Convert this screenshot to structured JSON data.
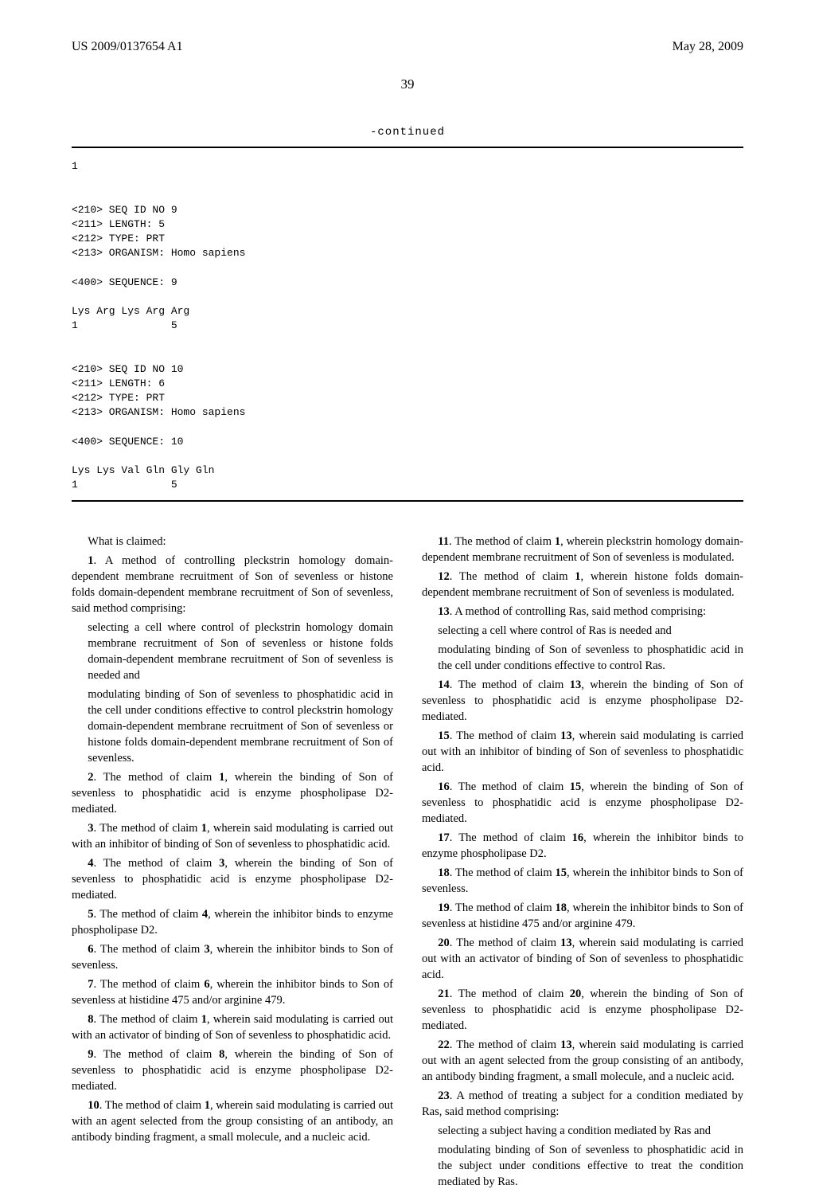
{
  "header": {
    "pubno": "US 2009/0137654 A1",
    "date": "May 28, 2009"
  },
  "page_number": "39",
  "continued_label": "-continued",
  "sequence_text": "1\n\n\n<210> SEQ ID NO 9\n<211> LENGTH: 5\n<212> TYPE: PRT\n<213> ORGANISM: Homo sapiens\n\n<400> SEQUENCE: 9\n\nLys Arg Lys Arg Arg\n1               5\n\n\n<210> SEQ ID NO 10\n<211> LENGTH: 6\n<212> TYPE: PRT\n<213> ORGANISM: Homo sapiens\n\n<400> SEQUENCE: 10\n\nLys Lys Val Gln Gly Gln\n1               5",
  "claims_lead": "What is claimed:",
  "claims": {
    "c1": {
      "num": "1",
      "intro": ". A method of controlling pleckstrin homology domain-dependent membrane recruitment of Son of sevenless or histone folds domain-dependent membrane recruitment of Son of sevenless, said method comprising:",
      "sub1": "selecting a cell where control of pleckstrin homology domain membrane recruitment of Son of sevenless or histone folds domain-dependent membrane recruitment of Son of sevenless is needed and",
      "sub2": "modulating binding of Son of sevenless to phosphatidic acid in the cell under conditions effective to control pleckstrin homology domain-dependent membrane recruitment of Son of sevenless or histone folds domain-dependent membrane recruitment of Son of sevenless."
    },
    "c2": {
      "num": "2",
      "ref": "1",
      "text_a": ". The method of claim ",
      "text_b": ", wherein the binding of Son of sevenless to phosphatidic acid is enzyme phospholipase D2-mediated."
    },
    "c3": {
      "num": "3",
      "ref": "1",
      "text_a": ". The method of claim ",
      "text_b": ", wherein said modulating is carried out with an inhibitor of binding of Son of sevenless to phosphatidic acid."
    },
    "c4": {
      "num": "4",
      "ref": "3",
      "text_a": ". The method of claim ",
      "text_b": ", wherein the binding of Son of sevenless to phosphatidic acid is enzyme phospholipase D2-mediated."
    },
    "c5": {
      "num": "5",
      "ref": "4",
      "text_a": ". The method of claim ",
      "text_b": ", wherein the inhibitor binds to enzyme phospholipase D2."
    },
    "c6": {
      "num": "6",
      "ref": "3",
      "text_a": ". The method of claim ",
      "text_b": ", wherein the inhibitor binds to Son of sevenless."
    },
    "c7": {
      "num": "7",
      "ref": "6",
      "text_a": ". The method of claim ",
      "text_b": ", wherein the inhibitor binds to Son of sevenless at histidine 475 and/or arginine 479."
    },
    "c8": {
      "num": "8",
      "ref": "1",
      "text_a": ". The method of claim ",
      "text_b": ", wherein said modulating is carried out with an activator of binding of Son of sevenless to phosphatidic acid."
    },
    "c9": {
      "num": "9",
      "ref": "8",
      "text_a": ". The method of claim ",
      "text_b": ", wherein the binding of Son of sevenless to phosphatidic acid is enzyme phospholipase D2-mediated."
    },
    "c10": {
      "num": "10",
      "ref": "1",
      "text_a": ". The method of claim ",
      "text_b": ", wherein said modulating is carried out with an agent selected from the group consisting of an antibody, an antibody binding fragment, a small molecule, and a nucleic acid."
    },
    "c11": {
      "num": "11",
      "ref": "1",
      "text_a": ". The method of claim ",
      "text_b": ", wherein pleckstrin homology domain-dependent membrane recruitment of Son of sevenless is modulated."
    },
    "c12": {
      "num": "12",
      "ref": "1",
      "text_a": ". The method of claim ",
      "text_b": ", wherein histone folds domain-dependent membrane recruitment of Son of sevenless is modulated."
    },
    "c13": {
      "num": "13",
      "intro": ". A method of controlling Ras, said method comprising:",
      "sub1": "selecting a cell where control of Ras is needed and",
      "sub2": "modulating binding of Son of sevenless to phosphatidic acid in the cell under conditions effective to control Ras."
    },
    "c14": {
      "num": "14",
      "ref": "13",
      "text_a": ". The method of claim ",
      "text_b": ", wherein the binding of Son of sevenless to phosphatidic acid is enzyme phospholipase D2-mediated."
    },
    "c15": {
      "num": "15",
      "ref": "13",
      "text_a": ". The method of claim ",
      "text_b": ", wherein said modulating is carried out with an inhibitor of binding of Son of sevenless to phosphatidic acid."
    },
    "c16": {
      "num": "16",
      "ref": "15",
      "text_a": ". The method of claim ",
      "text_b": ", wherein the binding of Son of sevenless to phosphatidic acid is enzyme phospholipase D2-mediated."
    },
    "c17": {
      "num": "17",
      "ref": "16",
      "text_a": ". The method of claim ",
      "text_b": ", wherein the inhibitor binds to enzyme phospholipase D2."
    },
    "c18": {
      "num": "18",
      "ref": "15",
      "text_a": ". The method of claim ",
      "text_b": ", wherein the inhibitor binds to Son of sevenless."
    },
    "c19": {
      "num": "19",
      "ref": "18",
      "text_a": ". The method of claim ",
      "text_b": ", wherein the inhibitor binds to Son of sevenless at histidine 475 and/or arginine 479."
    },
    "c20": {
      "num": "20",
      "ref": "13",
      "text_a": ". The method of claim ",
      "text_b": ", wherein said modulating is carried out with an activator of binding of Son of sevenless to phosphatidic acid."
    },
    "c21": {
      "num": "21",
      "ref": "20",
      "text_a": ". The method of claim ",
      "text_b": ", wherein the binding of Son of sevenless to phosphatidic acid is enzyme phospholipase D2-mediated."
    },
    "c22": {
      "num": "22",
      "ref": "13",
      "text_a": ". The method of claim ",
      "text_b": ", wherein said modulating is carried out with an agent selected from the group consisting of an antibody, an antibody binding fragment, a small molecule, and a nucleic acid."
    },
    "c23": {
      "num": "23",
      "intro": ". A method of treating a subject for a condition mediated by Ras, said method comprising:",
      "sub1": "selecting a subject having a condition mediated by Ras and",
      "sub2": "modulating binding of Son of sevenless to phosphatidic acid in the subject under conditions effective to treat the condition mediated by Ras."
    }
  }
}
